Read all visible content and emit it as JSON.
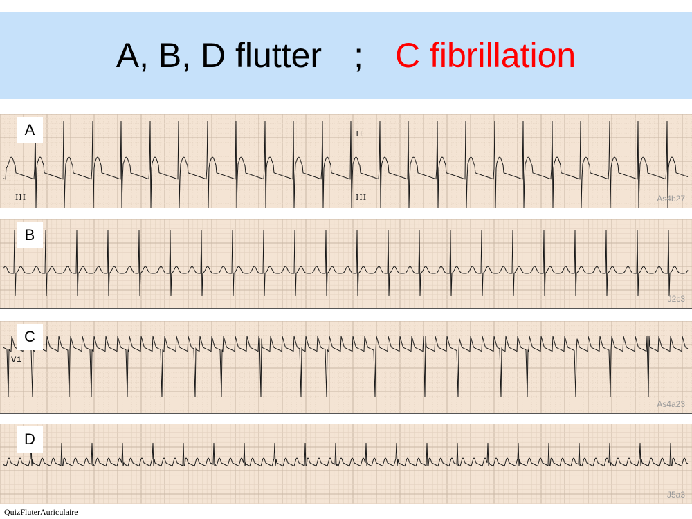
{
  "title": {
    "part1": "A, B, D flutter",
    "separator": ";",
    "part2": "C fibrillation",
    "part2_color": "#ff0000"
  },
  "strips": [
    {
      "letter": "A",
      "code": "As4b27",
      "leads": [
        "III",
        "II",
        "III"
      ]
    },
    {
      "letter": "B",
      "code": "J2c3"
    },
    {
      "letter": "C",
      "code": "As4a23",
      "leads": [
        "V1"
      ]
    },
    {
      "letter": "D",
      "code": "J5a3"
    }
  ],
  "footer": "QuizFluterAuriculaire"
}
